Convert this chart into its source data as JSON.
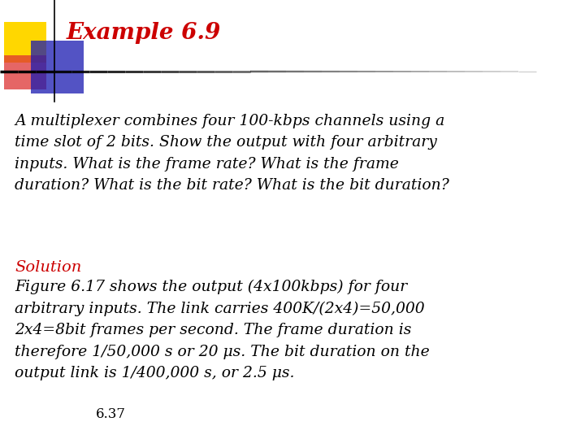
{
  "title": "Example 6.9",
  "title_color": "#CC0000",
  "title_fontsize": 20,
  "bg_color": "#FFFFFF",
  "logo_yellow": "#FFD700",
  "logo_blue_dark": "#1A1AB0",
  "logo_red": "#DD3333",
  "question_text": "A multiplexer combines four 100-kbps channels using a\ntime slot of 2 bits. Show the output with four arbitrary\ninputs. What is the frame rate? What is the frame\nduration? What is the bit rate? What is the bit duration?",
  "solution_label": "Solution",
  "solution_color": "#CC0000",
  "solution_text": "Figure 6.17 shows the output (4x100kbps) for four\narbitrary inputs. The link carries 400K/(2x4)=50,000\n2x4=8bit frames per second. The frame duration is\ntherefore 1/50,000 s or 20 μs. The bit duration on the\noutput link is 1/400,000 s, or 2.5 μs.",
  "footer_text": "6.37",
  "question_fontsize": 13.5,
  "solution_fontsize": 14,
  "solution_body_fontsize": 13.5,
  "footer_fontsize": 12
}
